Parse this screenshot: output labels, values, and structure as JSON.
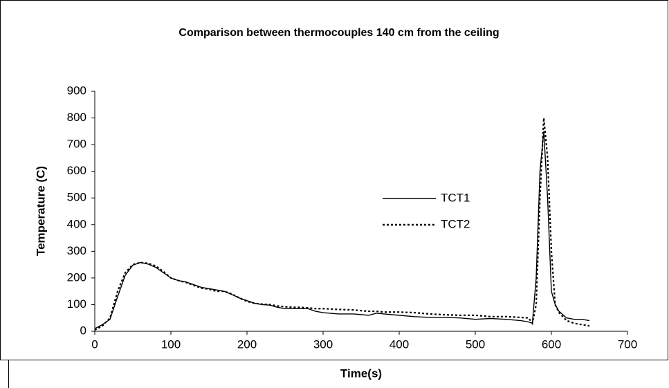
{
  "chart_data": {
    "type": "line",
    "title": "Comparison between thermocouples 140 cm from the ceiling",
    "x_label": "Time(s)",
    "y_label": "Temperature (C)",
    "x": [
      0,
      10,
      20,
      30,
      40,
      50,
      60,
      70,
      80,
      90,
      100,
      110,
      120,
      130,
      140,
      150,
      160,
      170,
      180,
      190,
      200,
      210,
      220,
      230,
      240,
      250,
      260,
      270,
      280,
      290,
      300,
      320,
      340,
      360,
      370,
      380,
      400,
      420,
      440,
      460,
      480,
      500,
      520,
      540,
      560,
      570,
      575,
      580,
      585,
      590,
      595,
      600,
      605,
      610,
      620,
      630,
      640,
      650
    ],
    "series": [
      {
        "name": "TCT1",
        "color": "#000000",
        "dash": "solid",
        "values": [
          10,
          25,
          45,
          130,
          210,
          248,
          258,
          252,
          240,
          220,
          200,
          190,
          185,
          175,
          165,
          160,
          155,
          150,
          138,
          125,
          115,
          105,
          100,
          98,
          90,
          85,
          85,
          85,
          85,
          75,
          70,
          65,
          65,
          60,
          68,
          65,
          60,
          55,
          52,
          52,
          50,
          45,
          48,
          45,
          40,
          35,
          30,
          200,
          600,
          750,
          500,
          150,
          100,
          75,
          50,
          45,
          45,
          40
        ]
      },
      {
        "name": "TCT2",
        "color": "#000000",
        "dash": "dotted",
        "values": [
          5,
          20,
          50,
          150,
          220,
          250,
          258,
          255,
          245,
          225,
          200,
          190,
          183,
          172,
          162,
          158,
          150,
          150,
          140,
          125,
          112,
          105,
          102,
          100,
          95,
          92,
          90,
          90,
          88,
          85,
          85,
          82,
          80,
          75,
          75,
          72,
          72,
          70,
          65,
          62,
          60,
          60,
          55,
          55,
          52,
          50,
          30,
          100,
          500,
          800,
          650,
          300,
          100,
          70,
          40,
          30,
          25,
          20
        ]
      }
    ],
    "xlim": [
      0,
      700
    ],
    "xticks": [
      0,
      100,
      200,
      300,
      400,
      500,
      600,
      700
    ],
    "ylim": [
      0,
      900
    ],
    "yticks": [
      0,
      100,
      200,
      300,
      400,
      500,
      600,
      700,
      800,
      900
    ],
    "grid": false,
    "legend": "center-right"
  }
}
